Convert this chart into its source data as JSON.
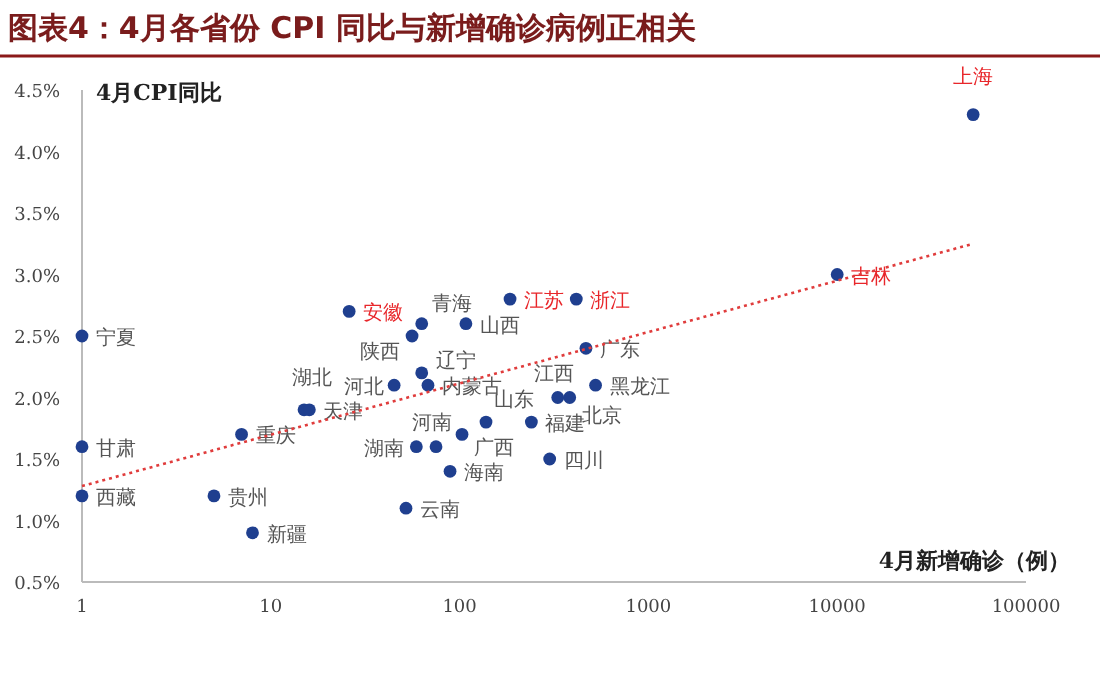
{
  "chart_data": {
    "type": "scatter",
    "title": "图表4：4月各省份 CPI 同比与新增确诊病例正相关",
    "ylabel": "4月CPI同比",
    "xlabel": "4月新增确诊（例）",
    "log": "x",
    "marker": "circle",
    "grid": false,
    "xlim": [
      1,
      100000
    ],
    "xticks": [
      1,
      10,
      100,
      1000,
      10000,
      100000
    ],
    "ylim": [
      0.5,
      4.5
    ],
    "yticks": [
      {
        "value": 0.5,
        "label": "0.5%"
      },
      {
        "value": 1.0,
        "label": "1.0%"
      },
      {
        "value": 1.5,
        "label": "1.5%"
      },
      {
        "value": 2.0,
        "label": "2.0%"
      },
      {
        "value": 2.5,
        "label": "2.5%"
      },
      {
        "value": 3.0,
        "label": "3.0%"
      },
      {
        "value": 3.5,
        "label": "3.5%"
      },
      {
        "value": 4.0,
        "label": "4.0%"
      },
      {
        "value": 4.5,
        "label": "4.5%"
      }
    ],
    "series": [
      {
        "color": "#1f3f8f",
        "x": [
          1,
          1,
          1,
          5,
          8,
          7,
          15,
          16,
          56,
          63,
          108,
          63,
          45,
          68,
          59,
          75,
          103,
          89,
          52,
          138,
          240,
          300,
          331,
          383,
          525,
          467
        ],
        "values": [
          2.5,
          1.6,
          1.2,
          1.2,
          0.9,
          1.7,
          1.9,
          1.9,
          2.5,
          2.6,
          2.6,
          2.2,
          2.1,
          2.1,
          1.6,
          1.6,
          1.7,
          1.4,
          1.1,
          1.8,
          1.8,
          1.5,
          2.0,
          2.0,
          2.1,
          2.4
        ],
        "value_labels": [
          "宁夏",
          "甘肃",
          "西藏",
          "贵州",
          "新疆",
          "重庆",
          "湖北",
          "天津",
          "陕西",
          "青海",
          "山西",
          "辽宁",
          "河北",
          "内蒙古",
          "湖南",
          "河南",
          "广西",
          "海南",
          "云南",
          "山东",
          "福建",
          "四川",
          "江西",
          "北京",
          "黑龙江",
          "广东"
        ]
      },
      {
        "color": "#1f3f8f",
        "x": [
          52500,
          10000,
          415,
          185,
          26
        ],
        "values": [
          4.3,
          3.0,
          2.8,
          2.8,
          2.7
        ],
        "value_labels": [
          "上海",
          "吉林",
          "浙江",
          "江苏",
          "安徽"
        ]
      },
      {
        "type": "line",
        "color": "#e03c3c",
        "line_style": "dotted",
        "marker": "none",
        "x": [
          1,
          52500
        ],
        "values": [
          1.28,
          3.25
        ]
      }
    ]
  }
}
